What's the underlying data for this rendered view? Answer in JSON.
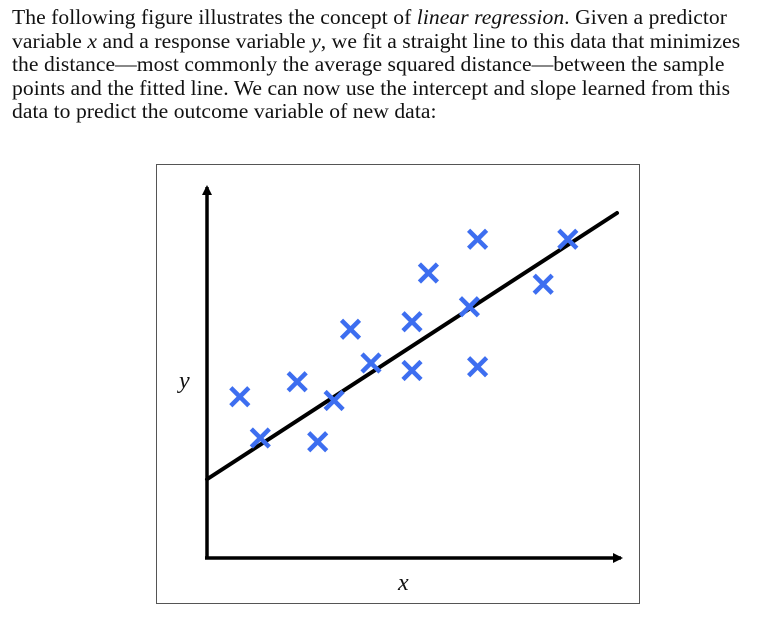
{
  "paragraph": {
    "lines": [
      [
        {
          "text": "The following figure illustrates the concept of ",
          "italic": false
        },
        {
          "text": "linear regression",
          "italic": true
        },
        {
          "text": ". Given a predictor",
          "italic": false
        }
      ],
      [
        {
          "text": "variable ",
          "italic": false
        },
        {
          "text": "x",
          "italic": true
        },
        {
          "text": " and a response variable ",
          "italic": false
        },
        {
          "text": "y",
          "italic": true
        },
        {
          "text": ", we fit a straight line to this data that minimizes",
          "italic": false
        }
      ],
      [
        {
          "text": "the distance—most commonly the average squared distance—between the sample",
          "italic": false
        }
      ],
      [
        {
          "text": "points and the fitted line. We can now use the intercept and slope learned from this",
          "italic": false
        }
      ],
      [
        {
          "text": "data to predict the outcome variable of new data:",
          "italic": false
        }
      ]
    ]
  },
  "chart_data": {
    "type": "scatter",
    "xlabel": "x",
    "ylabel": "y",
    "xlim": [
      0,
      10
    ],
    "ylim": [
      0,
      10
    ],
    "points": [
      {
        "x": 0.8,
        "y": 4.3
      },
      {
        "x": 1.3,
        "y": 3.2
      },
      {
        "x": 2.2,
        "y": 4.7
      },
      {
        "x": 2.7,
        "y": 3.1
      },
      {
        "x": 3.1,
        "y": 4.2
      },
      {
        "x": 3.5,
        "y": 6.1
      },
      {
        "x": 4.0,
        "y": 5.2
      },
      {
        "x": 5.0,
        "y": 5.0
      },
      {
        "x": 5.0,
        "y": 6.3
      },
      {
        "x": 5.4,
        "y": 7.6
      },
      {
        "x": 6.4,
        "y": 6.7
      },
      {
        "x": 6.6,
        "y": 5.1
      },
      {
        "x": 6.6,
        "y": 8.5
      },
      {
        "x": 8.2,
        "y": 7.3
      },
      {
        "x": 8.8,
        "y": 8.5
      }
    ],
    "fit_line": {
      "intercept": 2.1,
      "slope": 0.71,
      "x_end": 10.0
    },
    "colors": {
      "marker": "#3d6ef0",
      "line": "#000000",
      "axis": "#000000"
    }
  }
}
